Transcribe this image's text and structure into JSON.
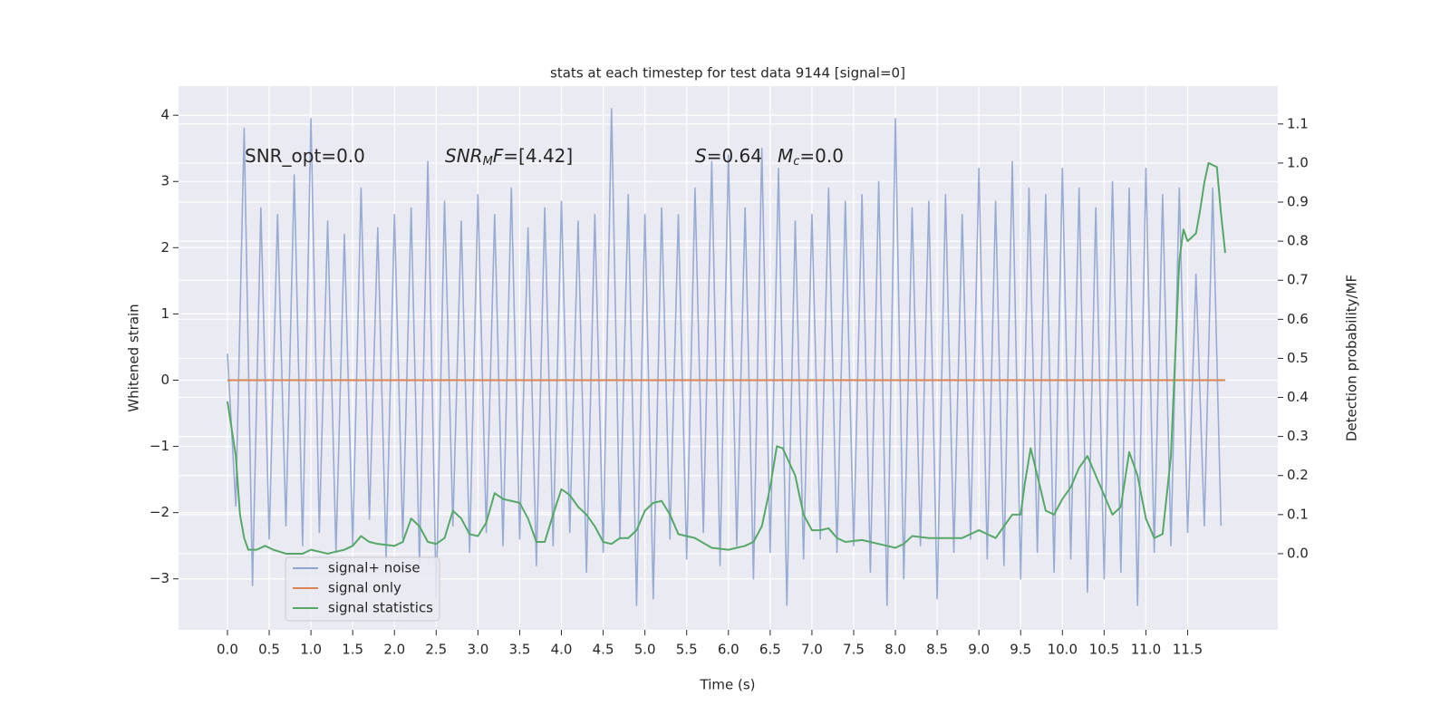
{
  "chart_data": {
    "type": "line",
    "title": "stats at each timestep for test data 9144 [signal=0]",
    "xlabel": "Time (s)",
    "ylabel": "Whitened strain",
    "y2label": "Detection probability/MF",
    "xlim": [
      -0.586,
      12.58
    ],
    "ylim": [
      -3.77,
      4.44
    ],
    "y2lim": [
      -0.195,
      1.197
    ],
    "xticks": [
      {
        "value": 0,
        "label": "0.0"
      },
      0.5,
      {
        "value": 1,
        "label": "1.0"
      },
      1.5,
      {
        "value": 2,
        "label": "2.0"
      },
      2.5,
      {
        "value": 3,
        "label": "3.0"
      },
      3.5,
      {
        "value": 4,
        "label": "4.0"
      },
      4.5,
      {
        "value": 5,
        "label": "5.0"
      },
      5.5,
      {
        "value": 6,
        "label": "6.0"
      },
      6.5,
      {
        "value": 7,
        "label": "7.0"
      },
      7.5,
      {
        "value": 8,
        "label": "8.0"
      },
      8.5,
      {
        "value": 9,
        "label": "9.0"
      },
      9.5,
      {
        "value": 10,
        "label": "10.0"
      },
      10.5,
      {
        "value": 11,
        "label": "11.0"
      },
      11.5
    ],
    "yticks": [
      {
        "value": -3,
        "label": "−3"
      },
      {
        "value": -2,
        "label": "−2"
      },
      {
        "value": -1,
        "label": "−1"
      },
      0,
      1,
      2,
      3,
      4
    ],
    "y2ticks": [
      {
        "value": 0,
        "label": "0.0"
      },
      0.1,
      0.2,
      0.3,
      0.4,
      0.5,
      0.6,
      0.7,
      0.8,
      0.9,
      {
        "value": 1,
        "label": "1.0"
      },
      1.1
    ],
    "grid": true,
    "legend": "lower left",
    "annotations": [
      {
        "parts": [
          {
            "text": "SNR_opt=0.0"
          }
        ]
      },
      {
        "parts": [
          {
            "text": "SNR",
            "style": "italic"
          },
          {
            "text": "M",
            "style": "sub"
          },
          {
            "text": "F",
            "style": "italic"
          },
          {
            "text": "=[4.42]"
          }
        ]
      },
      {
        "parts": [
          {
            "text": "S",
            "style": "italic"
          },
          {
            "text": "=0.64"
          }
        ]
      },
      {
        "parts": [
          {
            "text": "M",
            "style": "italic"
          },
          {
            "text": "c",
            "style": "sub"
          },
          {
            "text": "=0.0"
          }
        ]
      }
    ],
    "series": [
      {
        "name": "signal+ noise",
        "color": "#8fa4cf",
        "x": [
          0.0,
          0.1,
          0.2,
          0.3,
          0.4,
          0.5,
          0.6,
          0.7,
          0.8,
          0.9,
          1.0,
          1.1,
          1.2,
          1.3,
          1.4,
          1.5,
          1.6,
          1.7,
          1.8,
          1.9,
          2.0,
          2.1,
          2.2,
          2.3,
          2.4,
          2.5,
          2.6,
          2.7,
          2.8,
          2.9,
          3.0,
          3.1,
          3.2,
          3.3,
          3.4,
          3.5,
          3.6,
          3.7,
          3.8,
          3.9,
          4.0,
          4.1,
          4.2,
          4.3,
          4.4,
          4.5,
          4.6,
          4.7,
          4.8,
          4.9,
          5.0,
          5.1,
          5.2,
          5.3,
          5.4,
          5.5,
          5.6,
          5.7,
          5.8,
          5.9,
          6.0,
          6.1,
          6.2,
          6.3,
          6.4,
          6.5,
          6.6,
          6.7,
          6.8,
          6.9,
          7.0,
          7.1,
          7.2,
          7.3,
          7.4,
          7.5,
          7.6,
          7.7,
          7.8,
          7.9,
          8.0,
          8.1,
          8.2,
          8.3,
          8.4,
          8.5,
          8.6,
          8.7,
          8.8,
          8.9,
          9.0,
          9.1,
          9.2,
          9.3,
          9.4,
          9.5,
          9.6,
          9.7,
          9.8,
          9.9,
          10.0,
          10.1,
          10.2,
          10.3,
          10.4,
          10.5,
          10.6,
          10.7,
          10.8,
          10.9,
          11.0,
          11.1,
          11.2,
          11.3,
          11.4,
          11.5,
          11.6,
          11.7,
          11.8,
          11.9
        ],
        "values": [
          0.4,
          -1.9,
          3.8,
          -3.1,
          2.6,
          -2.4,
          2.5,
          -2.2,
          3.1,
          -2.5,
          3.95,
          -2.3,
          2.4,
          -2.6,
          2.2,
          -2.5,
          2.9,
          -2.1,
          2.3,
          -2.7,
          2.5,
          -2.4,
          2.6,
          -2.8,
          3.3,
          -3.3,
          2.7,
          -2.2,
          2.4,
          -2.6,
          2.8,
          -2.3,
          2.5,
          -2.5,
          2.9,
          -2.4,
          2.3,
          -2.8,
          2.6,
          -2.5,
          2.7,
          -2.3,
          2.4,
          -2.9,
          2.5,
          -2.6,
          4.1,
          -2.4,
          2.8,
          -3.4,
          2.5,
          -3.3,
          2.6,
          -2.4,
          2.5,
          -2.7,
          2.9,
          -2.3,
          3.3,
          -2.8,
          3.4,
          -2.5,
          2.6,
          -3.0,
          3.5,
          -2.6,
          3.2,
          -3.4,
          2.4,
          -2.7,
          2.5,
          -2.4,
          2.9,
          -2.6,
          2.7,
          -2.5,
          2.8,
          -2.9,
          3.0,
          -3.4,
          3.95,
          -3.0,
          2.6,
          -2.5,
          2.7,
          -3.3,
          2.8,
          -2.6,
          2.5,
          -2.4,
          3.2,
          -2.7,
          2.7,
          -2.8,
          3.3,
          -3.0,
          2.9,
          -2.6,
          2.8,
          -2.9,
          3.2,
          -2.7,
          2.9,
          -3.2,
          2.6,
          -3.0,
          3.0,
          -2.9,
          2.9,
          -3.4,
          3.2,
          -2.6,
          2.8,
          -2.5,
          2.9,
          -2.3,
          1.6,
          -2.2,
          2.9,
          -2.2
        ]
      },
      {
        "name": "signal only",
        "color": "#dd8452",
        "x": [
          0.0,
          11.95
        ],
        "values": [
          0,
          0
        ]
      },
      {
        "name": "signal statistics",
        "color": "#55a868",
        "axis": "y2",
        "x": [
          0.0,
          0.1,
          0.15,
          0.2,
          0.25,
          0.35,
          0.45,
          0.55,
          0.7,
          0.9,
          1.0,
          1.2,
          1.4,
          1.5,
          1.6,
          1.7,
          1.8,
          2.0,
          2.1,
          2.2,
          2.3,
          2.4,
          2.5,
          2.6,
          2.7,
          2.8,
          2.9,
          3.0,
          3.1,
          3.2,
          3.3,
          3.4,
          3.5,
          3.6,
          3.7,
          3.8,
          3.9,
          4.0,
          4.1,
          4.2,
          4.3,
          4.4,
          4.5,
          4.6,
          4.7,
          4.8,
          4.9,
          5.0,
          5.1,
          5.2,
          5.3,
          5.4,
          5.6,
          5.8,
          6.0,
          6.2,
          6.3,
          6.4,
          6.5,
          6.58,
          6.65,
          6.8,
          6.9,
          7.0,
          7.1,
          7.2,
          7.3,
          7.4,
          7.6,
          7.8,
          8.0,
          8.1,
          8.2,
          8.4,
          8.6,
          8.8,
          9.0,
          9.1,
          9.2,
          9.3,
          9.4,
          9.5,
          9.55,
          9.62,
          9.7,
          9.8,
          9.9,
          10.0,
          10.1,
          10.2,
          10.3,
          10.4,
          10.5,
          10.6,
          10.7,
          10.8,
          10.9,
          11.0,
          11.1,
          11.2,
          11.3,
          11.4,
          11.45,
          11.5,
          11.6,
          11.65,
          11.7,
          11.75,
          11.85,
          11.9,
          11.95
        ],
        "values": [
          0.39,
          0.25,
          0.1,
          0.04,
          0.01,
          0.01,
          0.02,
          0.01,
          0.0,
          0.0,
          0.01,
          0.0,
          0.01,
          0.02,
          0.045,
          0.03,
          0.025,
          0.02,
          0.03,
          0.09,
          0.07,
          0.03,
          0.025,
          0.04,
          0.11,
          0.09,
          0.05,
          0.045,
          0.08,
          0.155,
          0.14,
          0.135,
          0.13,
          0.09,
          0.03,
          0.03,
          0.1,
          0.165,
          0.15,
          0.12,
          0.1,
          0.07,
          0.03,
          0.025,
          0.04,
          0.04,
          0.06,
          0.11,
          0.13,
          0.135,
          0.1,
          0.05,
          0.04,
          0.015,
          0.01,
          0.02,
          0.03,
          0.07,
          0.17,
          0.275,
          0.27,
          0.2,
          0.1,
          0.06,
          0.06,
          0.065,
          0.04,
          0.03,
          0.035,
          0.025,
          0.015,
          0.025,
          0.045,
          0.04,
          0.04,
          0.04,
          0.06,
          0.05,
          0.04,
          0.07,
          0.1,
          0.1,
          0.18,
          0.27,
          0.2,
          0.11,
          0.1,
          0.14,
          0.17,
          0.22,
          0.25,
          0.2,
          0.15,
          0.1,
          0.12,
          0.26,
          0.2,
          0.09,
          0.04,
          0.05,
          0.25,
          0.75,
          0.83,
          0.8,
          0.82,
          0.88,
          0.95,
          1.0,
          0.99,
          0.87,
          0.77
        ]
      }
    ]
  }
}
